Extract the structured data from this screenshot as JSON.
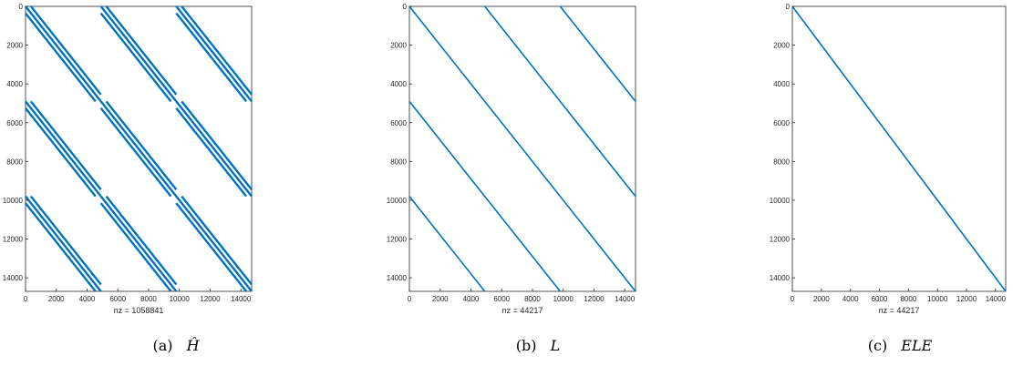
{
  "chart_data": [
    {
      "type": "scatter",
      "subtype": "sparsity-pattern",
      "caption_label": "(a)",
      "caption_symbol": "Ĥ",
      "xlabel": "nz = 1058841",
      "xlim": [
        0,
        14700
      ],
      "ylim": [
        0,
        14700
      ],
      "y_reversed": true,
      "grid": false,
      "x_ticks": [
        0,
        2000,
        4000,
        6000,
        8000,
        10000,
        12000,
        14000
      ],
      "y_ticks": [
        0,
        2000,
        4000,
        6000,
        8000,
        10000,
        12000,
        14000
      ],
      "line_color": "#0072bd",
      "block_size": 4900,
      "blocks": 3,
      "diagonal_offsets": [
        -350,
        0,
        350
      ],
      "segments": []
    },
    {
      "type": "scatter",
      "subtype": "sparsity-pattern",
      "caption_label": "(b)",
      "caption_symbol": "L",
      "xlabel": "nz = 44217",
      "xlim": [
        0,
        14700
      ],
      "ylim": [
        0,
        14700
      ],
      "y_reversed": true,
      "grid": false,
      "x_ticks": [
        0,
        2000,
        4000,
        6000,
        8000,
        10000,
        12000,
        14000
      ],
      "y_ticks": [
        0,
        2000,
        4000,
        6000,
        8000,
        10000,
        12000,
        14000
      ],
      "line_color": "#0072bd",
      "segments": [
        [
          [
            0,
            0
          ],
          [
            14700,
            14700
          ]
        ],
        [
          [
            4900,
            0
          ],
          [
            14700,
            9800
          ]
        ],
        [
          [
            9800,
            0
          ],
          [
            14700,
            4900
          ]
        ],
        [
          [
            0,
            4900
          ],
          [
            9800,
            14700
          ]
        ],
        [
          [
            0,
            9800
          ],
          [
            4900,
            14700
          ]
        ]
      ]
    },
    {
      "type": "scatter",
      "subtype": "sparsity-pattern",
      "caption_label": "(c)",
      "caption_symbol": "ELE",
      "xlabel": "nz = 44217",
      "xlim": [
        0,
        14700
      ],
      "ylim": [
        0,
        14700
      ],
      "y_reversed": true,
      "grid": false,
      "x_ticks": [
        0,
        2000,
        4000,
        6000,
        8000,
        10000,
        12000,
        14000
      ],
      "y_ticks": [
        0,
        2000,
        4000,
        6000,
        8000,
        10000,
        12000,
        14000
      ],
      "line_color": "#0072bd",
      "segments": [
        [
          [
            0,
            0
          ],
          [
            14700,
            14700
          ]
        ]
      ]
    }
  ]
}
